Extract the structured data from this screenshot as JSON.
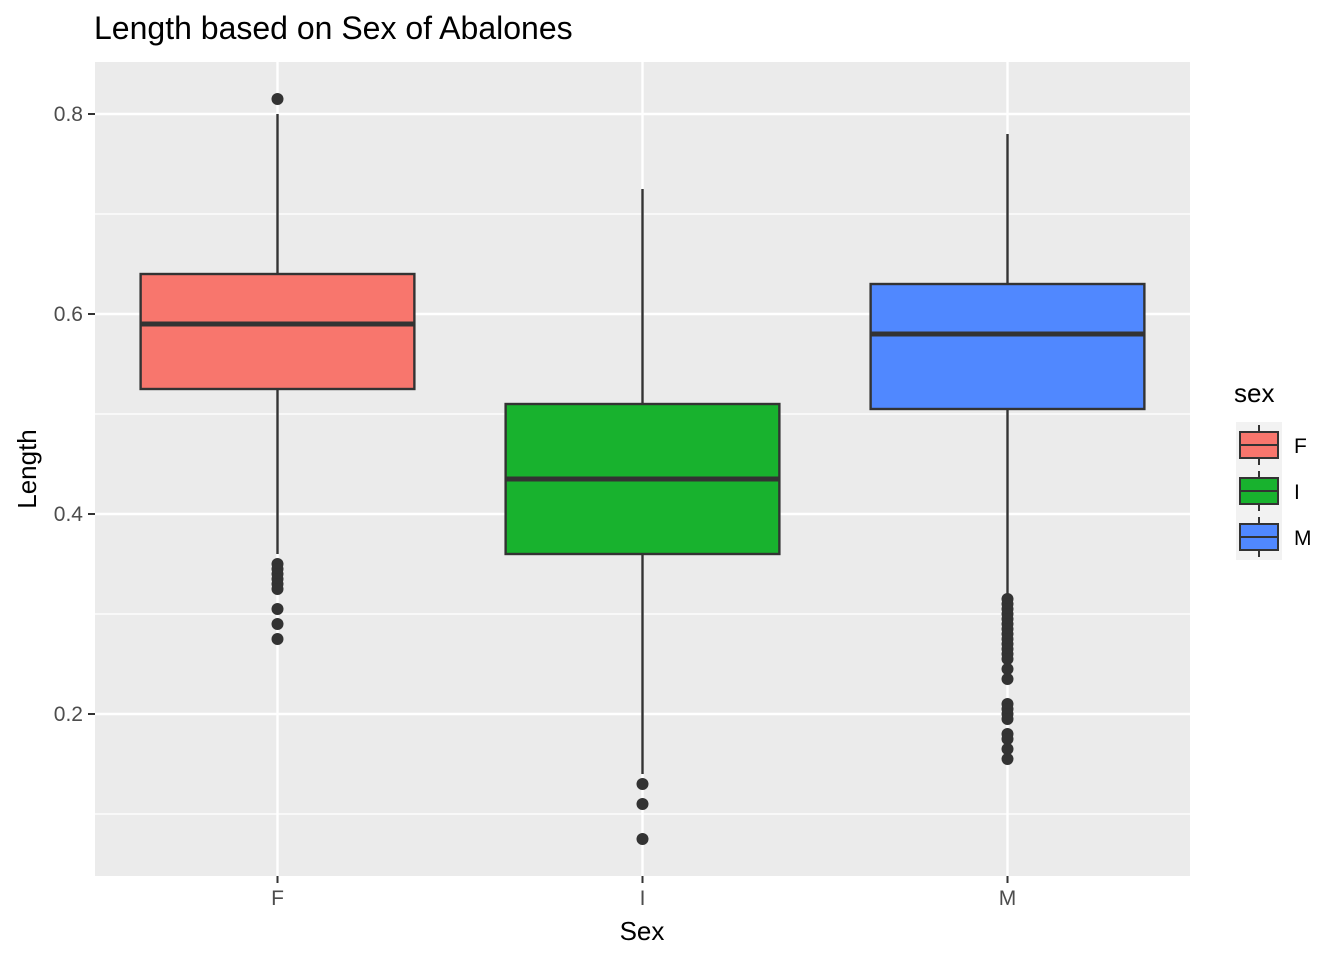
{
  "chart_data": {
    "type": "boxplot",
    "title": "Length based on Sex of Abalones",
    "xlabel": "Sex",
    "ylabel": "Length",
    "ylim": [
      0.04,
      0.85
    ],
    "yticks": [
      0.2,
      0.4,
      0.6,
      0.8
    ],
    "yticks_labels": [
      "0.2",
      "0.4",
      "0.6",
      "0.8"
    ],
    "grid": true,
    "categories": [
      "F",
      "I",
      "M"
    ],
    "legend": {
      "title": "sex",
      "position": "right",
      "entries": [
        "F",
        "I",
        "M"
      ]
    },
    "boxes": [
      {
        "category": "F",
        "color": "#F8766D",
        "q1": 0.525,
        "median": 0.59,
        "q3": 0.64,
        "whisker_low": 0.36,
        "whisker_high": 0.8,
        "outliers": [
          0.815,
          0.35,
          0.345,
          0.34,
          0.335,
          0.33,
          0.325,
          0.305,
          0.29,
          0.275
        ]
      },
      {
        "category": "I",
        "color": "#18B22E",
        "q1": 0.36,
        "median": 0.435,
        "q3": 0.51,
        "whisker_low": 0.14,
        "whisker_high": 0.725,
        "outliers": [
          0.13,
          0.11,
          0.075
        ]
      },
      {
        "category": "M",
        "color": "#5088FF",
        "q1": 0.505,
        "median": 0.58,
        "q3": 0.63,
        "whisker_low": 0.32,
        "whisker_high": 0.78,
        "outliers": [
          0.315,
          0.31,
          0.305,
          0.3,
          0.295,
          0.29,
          0.285,
          0.28,
          0.275,
          0.27,
          0.265,
          0.26,
          0.255,
          0.245,
          0.235,
          0.21,
          0.205,
          0.2,
          0.195,
          0.18,
          0.175,
          0.165,
          0.155
        ]
      }
    ]
  }
}
